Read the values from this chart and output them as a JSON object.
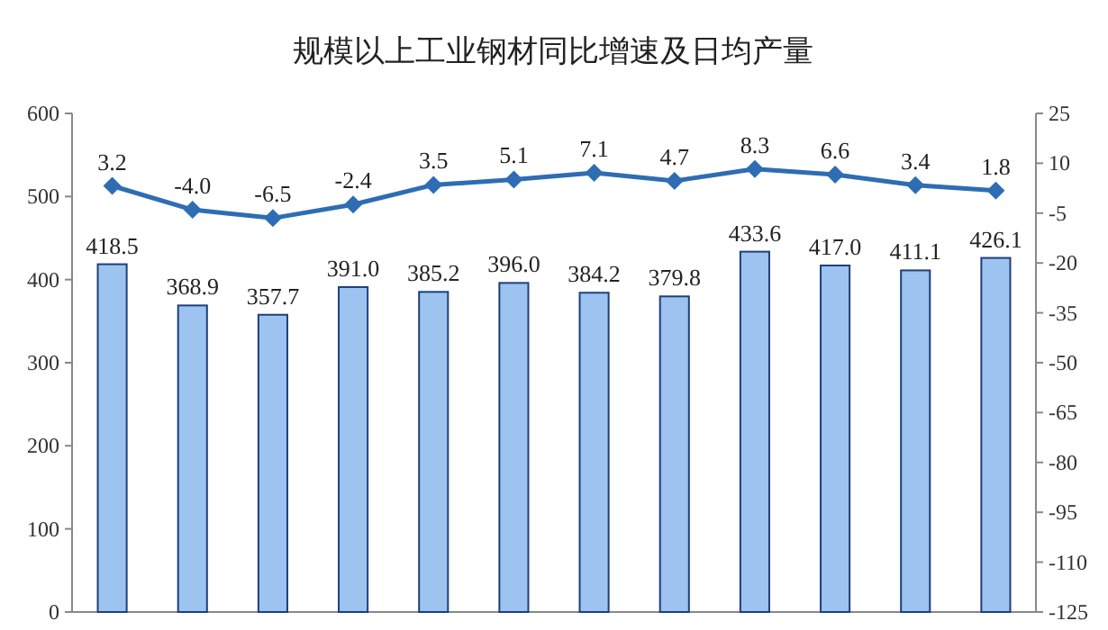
{
  "chart_data": {
    "type": "bar",
    "title": "规模以上工业钢材同比增速及日均产量",
    "categories": [
      null,
      null,
      null,
      null,
      null,
      null,
      null,
      null,
      null,
      null,
      null,
      null
    ],
    "series": [
      {
        "color": "#9dc3f0",
        "values": [
          418.5,
          368.9,
          357.7,
          391.0,
          385.2,
          396.0,
          384.2,
          379.8,
          433.6,
          417.0,
          411.1,
          426.1
        ],
        "value_labels": [
          "418.5",
          "368.9",
          "357.7",
          "391.0",
          "385.2",
          "396.0",
          "384.2",
          "379.8",
          "433.6",
          "417.0",
          "411.1",
          "426.1"
        ]
      },
      {
        "type": "line",
        "axis": "y2",
        "color": "#2e6db4",
        "marker": "diamond",
        "values": [
          3.2,
          -4.0,
          -6.5,
          -2.4,
          3.5,
          5.1,
          7.1,
          4.7,
          8.3,
          6.6,
          3.4,
          1.8
        ],
        "value_labels": [
          "3.2",
          "-4.0",
          "-6.5",
          "-2.4",
          "3.5",
          "5.1",
          "7.1",
          "4.7",
          "8.3",
          "6.6",
          "3.4",
          "1.8"
        ]
      }
    ],
    "grid": false,
    "ylim": [
      0,
      600
    ],
    "yticks": [
      0,
      100,
      200,
      300,
      400,
      500,
      600
    ],
    "y2lim": [
      -125,
      25
    ],
    "y2ticks": [
      -125,
      -110,
      -95,
      -80,
      -65,
      -50,
      -35,
      -20,
      -5,
      10,
      25
    ]
  }
}
